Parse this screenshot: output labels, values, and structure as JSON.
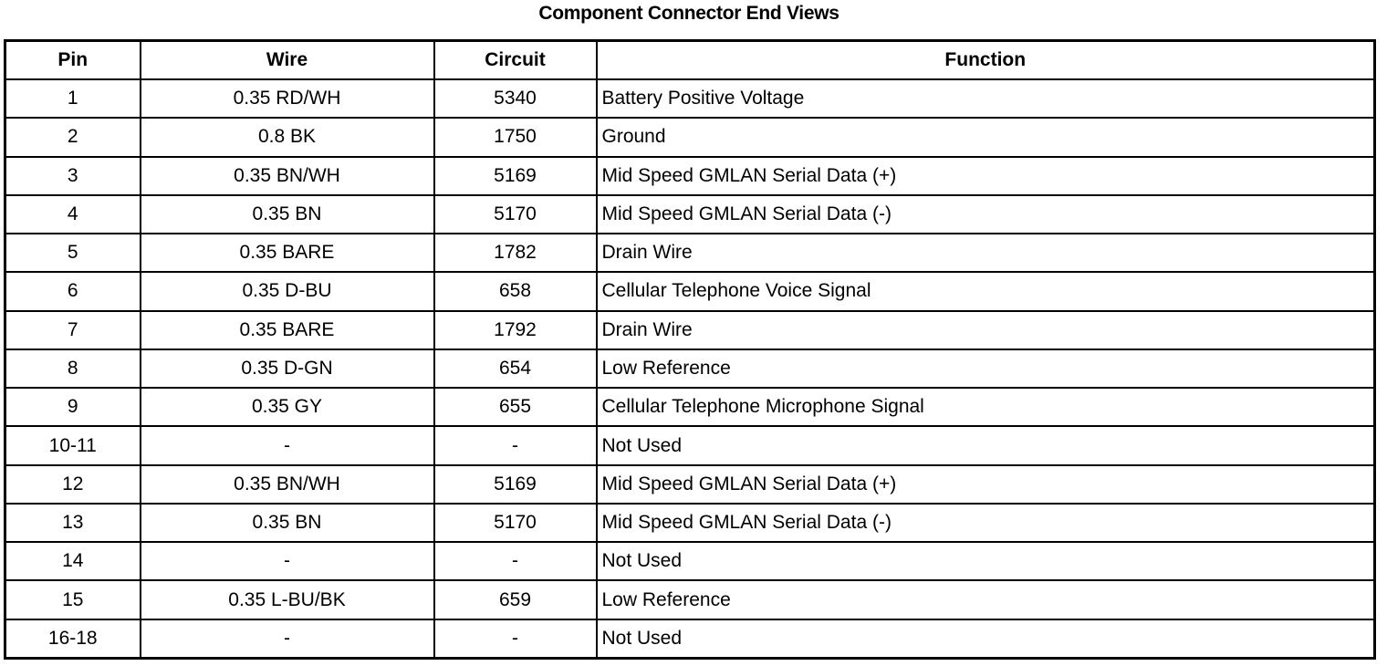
{
  "title": "Component Connector End Views",
  "table": {
    "headers": [
      "Pin",
      "Wire",
      "Circuit",
      "Function"
    ],
    "rows": [
      [
        "1",
        "0.35 RD/WH",
        "5340",
        "Battery Positive Voltage"
      ],
      [
        "2",
        "0.8 BK",
        "1750",
        "Ground"
      ],
      [
        "3",
        "0.35 BN/WH",
        "5169",
        "Mid Speed GMLAN Serial Data (+)"
      ],
      [
        "4",
        "0.35 BN",
        "5170",
        "Mid Speed GMLAN Serial Data (-)"
      ],
      [
        "5",
        "0.35 BARE",
        "1782",
        "Drain Wire"
      ],
      [
        "6",
        "0.35 D-BU",
        "658",
        "Cellular Telephone Voice Signal"
      ],
      [
        "7",
        "0.35 BARE",
        "1792",
        "Drain Wire"
      ],
      [
        "8",
        "0.35 D-GN",
        "654",
        "Low Reference"
      ],
      [
        "9",
        "0.35 GY",
        "655",
        "Cellular Telephone Microphone Signal"
      ],
      [
        "10-11",
        "-",
        "-",
        "Not Used"
      ],
      [
        "12",
        "0.35 BN/WH",
        "5169",
        "Mid Speed GMLAN Serial Data (+)"
      ],
      [
        "13",
        "0.35 BN",
        "5170",
        "Mid Speed GMLAN Serial Data (-)"
      ],
      [
        "14",
        "-",
        "-",
        "Not Used"
      ],
      [
        "15",
        "0.35 L-BU/BK",
        "659",
        "Low Reference"
      ],
      [
        "16-18",
        "-",
        "-",
        "Not Used"
      ]
    ]
  }
}
